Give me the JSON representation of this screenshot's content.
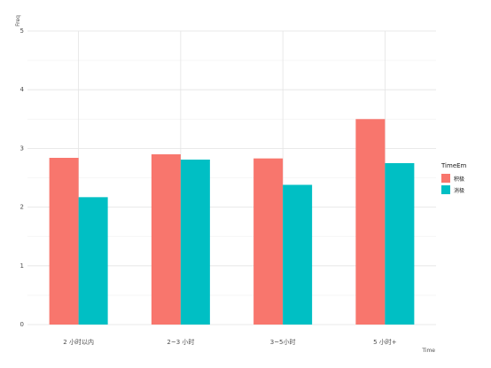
{
  "chart_data": {
    "type": "bar",
    "xlabel": "Time",
    "ylabel": "Freq",
    "ylim": [
      0,
      5
    ],
    "yticks": [
      0,
      1,
      2,
      3,
      4,
      5
    ],
    "categories": [
      "2 小时以内",
      "2~3 小时",
      "3~5小时",
      "5 小时+"
    ],
    "series": [
      {
        "name": "积极",
        "color": "#F8766D",
        "values": [
          2.84,
          2.9,
          2.83,
          3.5
        ]
      },
      {
        "name": "消极",
        "color": "#00BFC4",
        "values": [
          2.17,
          2.81,
          2.38,
          2.75
        ]
      }
    ],
    "legend": {
      "title": "TimeEm",
      "placement": "right"
    },
    "grid": true
  }
}
